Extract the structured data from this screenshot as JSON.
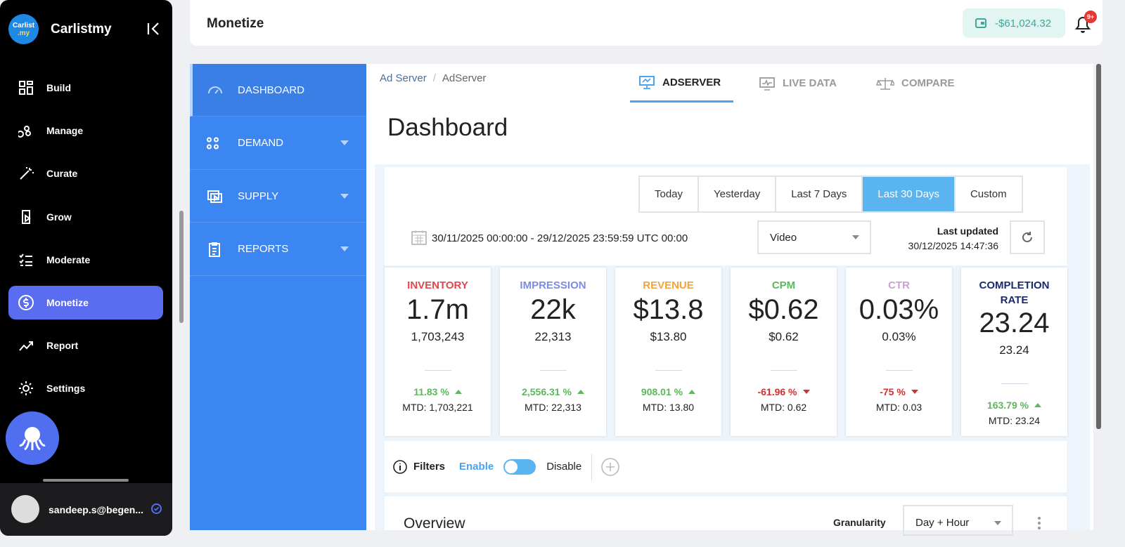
{
  "sidebar": {
    "logo_text": "Carlist",
    "logo_sub": ".my",
    "brand": "Carlistmy",
    "nav": [
      "Build",
      "Manage",
      "Curate",
      "Grow",
      "Moderate",
      "Monetize",
      "Report",
      "Settings"
    ],
    "user": "sandeep.s@begen..."
  },
  "topbar": {
    "title": "Monetize",
    "balance": "-$61,024.32",
    "badge": "9+"
  },
  "subnav": [
    "DASHBOARD",
    "DEMAND",
    "SUPPLY",
    "REPORTS"
  ],
  "breadcrumb": {
    "items": [
      "Ad Server",
      "AdServer"
    ],
    "separator": "/"
  },
  "page_title": "Dashboard",
  "tabs": [
    "ADSERVER",
    "LIVE DATA",
    "COMPARE"
  ],
  "ranges": [
    "Today",
    "Yesterday",
    "Last 7 Days",
    "Last 30 Days",
    "Custom"
  ],
  "date_range": "30/11/2025 00:00:00 - 29/12/2025 23:59:59 UTC 00:00",
  "media_select": "Video",
  "last_updated_label": "Last updated",
  "last_updated": "30/12/2025 14:47:36",
  "metrics": [
    {
      "label": "INVENTORY",
      "color": "#e0474c",
      "short": "1.7m",
      "full": "1,703,243",
      "change": "11.83 %",
      "trend": "up",
      "mtd": "MTD: 1,703,221"
    },
    {
      "label": "IMPRESSION",
      "color": "#7d8be0",
      "short": "22k",
      "full": "22,313",
      "change": "2,556.31 %",
      "trend": "up",
      "mtd": "MTD: 22,313"
    },
    {
      "label": "REVENUE",
      "color": "#f2a33a",
      "short": "$13.8",
      "full": "$13.80",
      "change": "908.01 %",
      "trend": "up",
      "mtd": "MTD: 13.80"
    },
    {
      "label": "CPM",
      "color": "#5cb85c",
      "short": "$0.62",
      "full": "$0.62",
      "change": "-61.96 %",
      "trend": "down",
      "mtd": "MTD: 0.62"
    },
    {
      "label": "CTR",
      "color": "#c9a3cf",
      "short": "0.03%",
      "full": "0.03%",
      "change": "-75 %",
      "trend": "down",
      "mtd": "MTD: 0.03"
    },
    {
      "label": "COMPLETION RATE",
      "color": "#1b2a6e",
      "short": "23.24",
      "full": "23.24",
      "change": "163.79 %",
      "trend": "up",
      "mtd": "MTD: 23.24"
    }
  ],
  "filters": {
    "label": "Filters",
    "enable": "Enable",
    "disable": "Disable"
  },
  "overview": {
    "title": "Overview",
    "granularity_label": "Granularity",
    "granularity": "Day + Hour"
  }
}
